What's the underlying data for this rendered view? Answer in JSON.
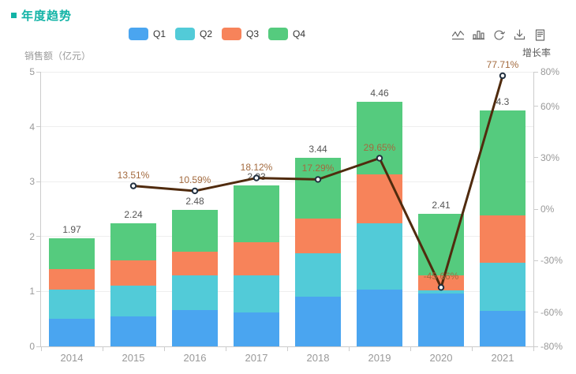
{
  "header": {
    "title": "年度趋势",
    "accent_color": "#12B3A6"
  },
  "legend": {
    "items": [
      {
        "label": "Q1",
        "color": "#4AA5F0"
      },
      {
        "label": "Q2",
        "color": "#52CBD8"
      },
      {
        "label": "Q3",
        "color": "#F7835A"
      },
      {
        "label": "Q4",
        "color": "#55CB7E"
      }
    ]
  },
  "toolbar": {
    "color": "#696969",
    "icons": [
      "line-chart-icon",
      "bar-chart-icon",
      "restore-icon",
      "save-image-icon",
      "data-view-icon"
    ]
  },
  "chart_data": {
    "type": "bar+line",
    "categories": [
      "2014",
      "2015",
      "2016",
      "2017",
      "2018",
      "2019",
      "2020",
      "2021"
    ],
    "series": [
      {
        "name": "Q1",
        "type": "bar",
        "stack": "total",
        "color": "#4AA5F0",
        "values": [
          0.5,
          0.54,
          0.66,
          0.62,
          0.9,
          1.04,
          0.96,
          0.64
        ]
      },
      {
        "name": "Q2",
        "type": "bar",
        "stack": "total",
        "color": "#52CBD8",
        "values": [
          0.53,
          0.56,
          0.63,
          0.68,
          0.79,
          1.2,
          0.06,
          0.89
        ]
      },
      {
        "name": "Q3",
        "type": "bar",
        "stack": "total",
        "color": "#F7835A",
        "values": [
          0.38,
          0.46,
          0.43,
          0.59,
          0.64,
          0.89,
          0.27,
          0.86
        ]
      },
      {
        "name": "Q4",
        "type": "bar",
        "stack": "total",
        "color": "#55CB7E",
        "values": [
          0.56,
          0.68,
          0.76,
          1.04,
          1.11,
          1.33,
          1.12,
          1.91
        ]
      },
      {
        "name": "增长率",
        "type": "line",
        "axis": "right",
        "color": "#502B0E",
        "marker_stroke": "#223040",
        "label_color": "#A36A3E",
        "values": [
          null,
          13.51,
          10.59,
          18.12,
          17.29,
          29.65,
          -45.66,
          77.71
        ],
        "labels": [
          "",
          "13.51%",
          "10.59%",
          "18.12%",
          "17.29%",
          "29.65%",
          "-45.66%",
          "77.71%"
        ]
      }
    ],
    "stack_total_labels": [
      "1.97",
      "2.24",
      "2.48",
      "2.93",
      "3.44",
      "4.46",
      "2.41",
      "4.3"
    ],
    "stack_totals": [
      1.97,
      2.24,
      2.48,
      2.93,
      3.44,
      4.46,
      2.41,
      4.3
    ],
    "left_axis": {
      "name": "销售额（亿元）",
      "min": 0,
      "max": 5,
      "tick_labels": [
        "0",
        "1",
        "2",
        "3",
        "4",
        "5"
      ]
    },
    "right_axis": {
      "name": "增长率",
      "min": -80,
      "max": 80,
      "ticks": [
        {
          "value": 80,
          "label": "80%"
        },
        {
          "value": 60,
          "label": "60%"
        },
        {
          "value": 30,
          "label": "30%"
        },
        {
          "value": 0,
          "label": "0%"
        },
        {
          "value": -30,
          "label": "-30%"
        },
        {
          "value": -60,
          "label": "-60%"
        },
        {
          "value": -80,
          "label": "-80%"
        }
      ]
    },
    "grid": true,
    "legend_position": "top"
  }
}
